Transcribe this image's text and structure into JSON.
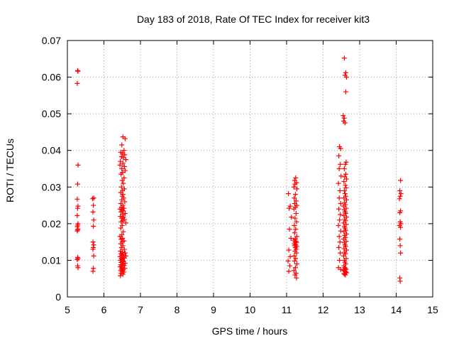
{
  "chart_data": {
    "type": "scatter",
    "title": "Day 183 of 2018, Rate Of TEC Index for receiver kit3",
    "xlabel": "GPS time / hours",
    "ylabel": "ROTI / TECUs",
    "xlim": [
      5,
      15
    ],
    "ylim": [
      0,
      0.07
    ],
    "xticks": [
      "5",
      "6",
      "7",
      "8",
      "9",
      "10",
      "11",
      "12",
      "13",
      "14",
      "15"
    ],
    "yticks": [
      "0",
      "0.01",
      "0.02",
      "0.03",
      "0.04",
      "0.05",
      "0.06",
      "0.07"
    ],
    "grid": true,
    "marker": "+",
    "colors": {
      "marker": "#ff0000",
      "grid": "#a0a0a0",
      "axis": "#000000"
    },
    "series": [
      {
        "name": "ROTI",
        "points": [
          [
            5.28,
            0.0618
          ],
          [
            5.29,
            0.0616
          ],
          [
            5.27,
            0.0583
          ],
          [
            5.29,
            0.036
          ],
          [
            5.28,
            0.0308
          ],
          [
            5.27,
            0.0267
          ],
          [
            5.29,
            0.0248
          ],
          [
            5.28,
            0.0242
          ],
          [
            5.27,
            0.0222
          ],
          [
            5.29,
            0.02
          ],
          [
            5.28,
            0.0196
          ],
          [
            5.27,
            0.0192
          ],
          [
            5.29,
            0.0186
          ],
          [
            5.28,
            0.0183
          ],
          [
            5.27,
            0.018
          ],
          [
            5.28,
            0.0108
          ],
          [
            5.29,
            0.0105
          ],
          [
            5.27,
            0.0102
          ],
          [
            5.28,
            0.0085
          ],
          [
            5.29,
            0.008
          ],
          [
            5.72,
            0.027
          ],
          [
            5.69,
            0.0268
          ],
          [
            5.71,
            0.025
          ],
          [
            5.7,
            0.0232
          ],
          [
            5.72,
            0.021
          ],
          [
            5.71,
            0.0193
          ],
          [
            5.7,
            0.015
          ],
          [
            5.72,
            0.0142
          ],
          [
            5.71,
            0.0135
          ],
          [
            5.7,
            0.013
          ],
          [
            5.72,
            0.0112
          ],
          [
            5.71,
            0.0078
          ],
          [
            5.7,
            0.007
          ],
          [
            6.52,
            0.0437
          ],
          [
            6.58,
            0.0432
          ],
          [
            6.49,
            0.0415
          ],
          [
            6.55,
            0.04
          ],
          [
            6.46,
            0.0395
          ],
          [
            6.51,
            0.0392
          ],
          [
            6.57,
            0.0388
          ],
          [
            6.48,
            0.0383
          ],
          [
            6.53,
            0.038
          ],
          [
            6.6,
            0.0375
          ],
          [
            6.45,
            0.037
          ],
          [
            6.52,
            0.0365
          ],
          [
            6.44,
            0.036
          ],
          [
            6.56,
            0.0356
          ],
          [
            6.49,
            0.035
          ],
          [
            6.58,
            0.0345
          ],
          [
            6.51,
            0.034
          ],
          [
            6.47,
            0.0335
          ],
          [
            6.55,
            0.0325
          ],
          [
            6.5,
            0.0318
          ],
          [
            6.53,
            0.031
          ],
          [
            6.48,
            0.03
          ],
          [
            6.56,
            0.0295
          ],
          [
            6.51,
            0.029
          ],
          [
            6.46,
            0.0285
          ],
          [
            6.52,
            0.028
          ],
          [
            6.5,
            0.0275
          ],
          [
            6.54,
            0.027
          ],
          [
            6.49,
            0.0265
          ],
          [
            6.57,
            0.026
          ],
          [
            6.46,
            0.0255
          ],
          [
            6.52,
            0.025
          ],
          [
            6.48,
            0.0245
          ],
          [
            6.55,
            0.0242
          ],
          [
            6.44,
            0.024
          ],
          [
            6.5,
            0.0238
          ],
          [
            6.53,
            0.0235
          ],
          [
            6.47,
            0.0232
          ],
          [
            6.58,
            0.0228
          ],
          [
            6.51,
            0.0225
          ],
          [
            6.45,
            0.022
          ],
          [
            6.54,
            0.0218
          ],
          [
            6.49,
            0.0215
          ],
          [
            6.56,
            0.0212
          ],
          [
            6.52,
            0.0208
          ],
          [
            6.47,
            0.0205
          ],
          [
            6.6,
            0.0202
          ],
          [
            6.5,
            0.0195
          ],
          [
            6.46,
            0.0188
          ],
          [
            6.53,
            0.0178
          ],
          [
            6.49,
            0.017
          ],
          [
            6.44,
            0.0165
          ],
          [
            6.51,
            0.016
          ],
          [
            6.47,
            0.0157
          ],
          [
            6.55,
            0.0153
          ],
          [
            6.5,
            0.015
          ],
          [
            6.46,
            0.0145
          ],
          [
            6.52,
            0.014
          ],
          [
            6.48,
            0.0135
          ],
          [
            6.56,
            0.013
          ],
          [
            6.45,
            0.0125
          ],
          [
            6.51,
            0.0122
          ],
          [
            6.58,
            0.012
          ],
          [
            6.47,
            0.0118
          ],
          [
            6.53,
            0.0116
          ],
          [
            6.49,
            0.0114
          ],
          [
            6.6,
            0.0112
          ],
          [
            6.44,
            0.011
          ],
          [
            6.52,
            0.0108
          ],
          [
            6.56,
            0.0106
          ],
          [
            6.48,
            0.0104
          ],
          [
            6.51,
            0.0102
          ],
          [
            6.45,
            0.01
          ],
          [
            6.54,
            0.0098
          ],
          [
            6.5,
            0.0096
          ],
          [
            6.47,
            0.0094
          ],
          [
            6.58,
            0.0092
          ],
          [
            6.52,
            0.009
          ],
          [
            6.46,
            0.0088
          ],
          [
            6.55,
            0.0086
          ],
          [
            6.49,
            0.0084
          ],
          [
            6.44,
            0.0082
          ],
          [
            6.51,
            0.008
          ],
          [
            6.57,
            0.0078
          ],
          [
            6.48,
            0.0076
          ],
          [
            6.53,
            0.0074
          ],
          [
            6.46,
            0.0072
          ],
          [
            6.5,
            0.007
          ],
          [
            6.55,
            0.0068
          ],
          [
            6.47,
            0.0065
          ],
          [
            6.52,
            0.0062
          ],
          [
            6.45,
            0.0058
          ],
          [
            11.05,
            0.0282
          ],
          [
            11.1,
            0.0248
          ],
          [
            11.07,
            0.0242
          ],
          [
            11.13,
            0.0218
          ],
          [
            11.08,
            0.0185
          ],
          [
            11.12,
            0.016
          ],
          [
            11.06,
            0.0128
          ],
          [
            11.1,
            0.011
          ],
          [
            11.04,
            0.0098
          ],
          [
            11.09,
            0.0085
          ],
          [
            11.06,
            0.007
          ],
          [
            11.25,
            0.0325
          ],
          [
            11.22,
            0.0318
          ],
          [
            11.27,
            0.0312
          ],
          [
            11.23,
            0.0308
          ],
          [
            11.2,
            0.03
          ],
          [
            11.28,
            0.0295
          ],
          [
            11.24,
            0.028
          ],
          [
            11.21,
            0.027
          ],
          [
            11.26,
            0.0262
          ],
          [
            11.22,
            0.0255
          ],
          [
            11.28,
            0.025
          ],
          [
            11.24,
            0.0245
          ],
          [
            11.2,
            0.024
          ],
          [
            11.26,
            0.0228
          ],
          [
            11.23,
            0.0215
          ],
          [
            11.27,
            0.0205
          ],
          [
            11.21,
            0.0195
          ],
          [
            11.25,
            0.0185
          ],
          [
            11.22,
            0.0175
          ],
          [
            11.28,
            0.0165
          ],
          [
            11.24,
            0.0158
          ],
          [
            11.2,
            0.0155
          ],
          [
            11.26,
            0.0152
          ],
          [
            11.23,
            0.015
          ],
          [
            11.27,
            0.0148
          ],
          [
            11.21,
            0.0145
          ],
          [
            11.25,
            0.0142
          ],
          [
            11.22,
            0.014
          ],
          [
            11.28,
            0.0138
          ],
          [
            11.24,
            0.0135
          ],
          [
            11.26,
            0.013
          ],
          [
            11.23,
            0.0125
          ],
          [
            11.27,
            0.012
          ],
          [
            11.21,
            0.0112
          ],
          [
            11.25,
            0.0105
          ],
          [
            11.22,
            0.0098
          ],
          [
            11.28,
            0.009
          ],
          [
            11.24,
            0.008
          ],
          [
            11.2,
            0.0072
          ],
          [
            11.26,
            0.0065
          ],
          [
            11.23,
            0.006
          ],
          [
            11.27,
            0.0052
          ],
          [
            12.45,
            0.041
          ],
          [
            12.48,
            0.0405
          ],
          [
            12.43,
            0.0385
          ],
          [
            12.47,
            0.0362
          ],
          [
            12.44,
            0.035
          ],
          [
            12.49,
            0.033
          ],
          [
            12.42,
            0.031
          ],
          [
            12.46,
            0.029
          ],
          [
            12.44,
            0.027
          ],
          [
            12.48,
            0.0255
          ],
          [
            12.43,
            0.024
          ],
          [
            12.47,
            0.0225
          ],
          [
            12.45,
            0.021
          ],
          [
            12.42,
            0.0195
          ],
          [
            12.48,
            0.018
          ],
          [
            12.44,
            0.0165
          ],
          [
            12.46,
            0.015
          ],
          [
            12.43,
            0.0135
          ],
          [
            12.47,
            0.012
          ],
          [
            12.45,
            0.01
          ],
          [
            12.42,
            0.008
          ],
          [
            12.48,
            0.0075
          ],
          [
            12.58,
            0.0652
          ],
          [
            12.62,
            0.0612
          ],
          [
            12.6,
            0.0605
          ],
          [
            12.64,
            0.06
          ],
          [
            12.62,
            0.056
          ],
          [
            12.55,
            0.0495
          ],
          [
            12.58,
            0.0488
          ],
          [
            12.56,
            0.048
          ],
          [
            12.6,
            0.0475
          ],
          [
            12.63,
            0.0368
          ],
          [
            12.61,
            0.0362
          ],
          [
            12.58,
            0.035
          ],
          [
            12.62,
            0.0335
          ],
          [
            12.59,
            0.0328
          ],
          [
            12.64,
            0.0322
          ],
          [
            12.57,
            0.0315
          ],
          [
            12.61,
            0.0305
          ],
          [
            12.63,
            0.0298
          ],
          [
            12.58,
            0.029
          ],
          [
            12.6,
            0.0282
          ],
          [
            12.62,
            0.0275
          ],
          [
            12.57,
            0.027
          ],
          [
            12.64,
            0.0265
          ],
          [
            12.59,
            0.0258
          ],
          [
            12.61,
            0.0252
          ],
          [
            12.56,
            0.0248
          ],
          [
            12.63,
            0.0242
          ],
          [
            12.58,
            0.0238
          ],
          [
            12.6,
            0.0232
          ],
          [
            12.62,
            0.0228
          ],
          [
            12.57,
            0.0222
          ],
          [
            12.64,
            0.0218
          ],
          [
            12.59,
            0.0212
          ],
          [
            12.61,
            0.0208
          ],
          [
            12.56,
            0.0202
          ],
          [
            12.63,
            0.0198
          ],
          [
            12.58,
            0.0192
          ],
          [
            12.6,
            0.0188
          ],
          [
            12.62,
            0.0182
          ],
          [
            12.57,
            0.0178
          ],
          [
            12.64,
            0.0172
          ],
          [
            12.59,
            0.0168
          ],
          [
            12.61,
            0.0162
          ],
          [
            12.56,
            0.0158
          ],
          [
            12.63,
            0.0152
          ],
          [
            12.58,
            0.0148
          ],
          [
            12.6,
            0.0142
          ],
          [
            12.62,
            0.0138
          ],
          [
            12.57,
            0.0132
          ],
          [
            12.64,
            0.0128
          ],
          [
            12.59,
            0.0122
          ],
          [
            12.61,
            0.0118
          ],
          [
            12.56,
            0.0112
          ],
          [
            12.63,
            0.0105
          ],
          [
            12.58,
            0.01
          ],
          [
            12.6,
            0.0095
          ],
          [
            12.62,
            0.009
          ],
          [
            12.57,
            0.0085
          ],
          [
            12.59,
            0.008
          ],
          [
            12.61,
            0.0078
          ],
          [
            12.63,
            0.0075
          ],
          [
            12.56,
            0.0073
          ],
          [
            12.58,
            0.0072
          ],
          [
            12.6,
            0.007
          ],
          [
            12.62,
            0.0068
          ],
          [
            12.64,
            0.0066
          ],
          [
            12.57,
            0.0064
          ],
          [
            12.59,
            0.0062
          ],
          [
            12.61,
            0.006
          ],
          [
            14.12,
            0.0318
          ],
          [
            14.1,
            0.029
          ],
          [
            14.13,
            0.0282
          ],
          [
            14.11,
            0.0275
          ],
          [
            14.09,
            0.0268
          ],
          [
            14.12,
            0.0235
          ],
          [
            14.1,
            0.023
          ],
          [
            14.11,
            0.0205
          ],
          [
            14.13,
            0.02
          ],
          [
            14.09,
            0.0195
          ],
          [
            14.12,
            0.019
          ],
          [
            14.1,
            0.0158
          ],
          [
            14.11,
            0.014
          ],
          [
            14.12,
            0.012
          ],
          [
            14.1,
            0.0052
          ],
          [
            14.11,
            0.0043
          ]
        ]
      }
    ]
  }
}
